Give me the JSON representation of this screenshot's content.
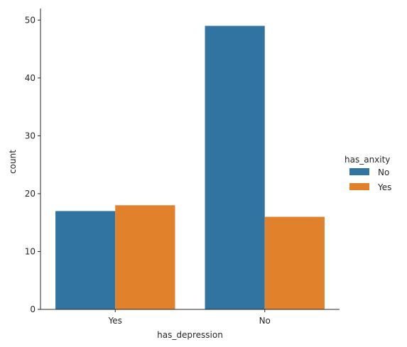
{
  "chart_data": {
    "type": "bar",
    "categories": [
      "Yes",
      "No"
    ],
    "series": [
      {
        "name": "No",
        "values": [
          17,
          49
        ],
        "color": "#3274a1"
      },
      {
        "name": "Yes",
        "values": [
          18,
          16
        ],
        "color": "#e1812c"
      }
    ],
    "xlabel": "has_depression",
    "ylabel": "count",
    "ylim": [
      0,
      52
    ],
    "yticks": [
      0,
      10,
      20,
      30,
      40,
      50
    ],
    "legend": {
      "title": "has_anxity",
      "placement": "right"
    },
    "grid": false
  }
}
